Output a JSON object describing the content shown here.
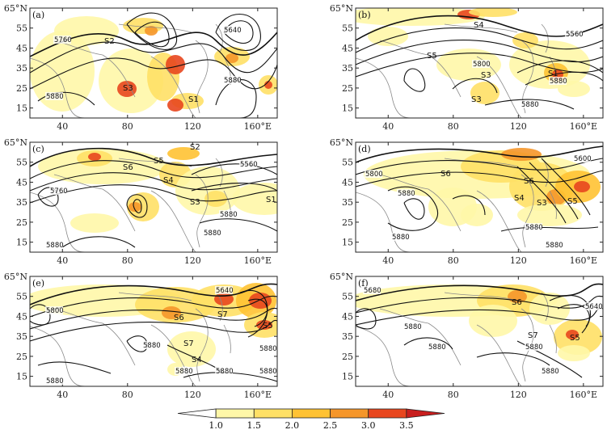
{
  "figure": {
    "lat_labels": [
      "65°N",
      "55",
      "45",
      "35",
      "25",
      "15"
    ],
    "lon_labels": [
      "40",
      "80",
      "120",
      "160°E"
    ],
    "colorbar": {
      "ticks": [
        "1.0",
        "1.5",
        "2.0",
        "2.5",
        "3.0",
        "3.5"
      ],
      "colors": [
        "#ffffff",
        "#fff7a8",
        "#ffe066",
        "#ffc233",
        "#f5962a",
        "#e8461e",
        "#c81e1e"
      ]
    },
    "panels": [
      {
        "id": "a",
        "label": "(a)",
        "contour_labels": [
          "5760",
          "5640",
          "5880",
          "5880"
        ],
        "system_labels": [
          "S2",
          "S3",
          "S1"
        ]
      },
      {
        "id": "b",
        "label": "(b)",
        "contour_labels": [
          "5560",
          "5800",
          "5880",
          "5880"
        ],
        "system_labels": [
          "S4",
          "S5",
          "S3",
          "S3",
          "S1"
        ]
      },
      {
        "id": "c",
        "label": "(c)",
        "contour_labels": [
          "5760",
          "5560",
          "5880",
          "5880",
          "5880"
        ],
        "system_labels": [
          "S6",
          "S5",
          "S4",
          "S2",
          "S3",
          "S1"
        ]
      },
      {
        "id": "d",
        "label": "(d)",
        "contour_labels": [
          "5800",
          "5600",
          "5880",
          "5880",
          "5880",
          "5880"
        ],
        "system_labels": [
          "S6",
          "S6",
          "S4",
          "S3",
          "S5"
        ]
      },
      {
        "id": "e",
        "label": "(e)",
        "contour_labels": [
          "5800",
          "5640",
          "5880",
          "5880",
          "5880",
          "5880",
          "5880",
          "5880"
        ],
        "system_labels": [
          "S6",
          "S7",
          "S5",
          "S7",
          "S4"
        ]
      },
      {
        "id": "f",
        "label": "(f)",
        "contour_labels": [
          "5680",
          "5640",
          "5880",
          "5880",
          "5880",
          "5880"
        ],
        "system_labels": [
          "S6",
          "S7",
          "S5"
        ]
      }
    ]
  }
}
